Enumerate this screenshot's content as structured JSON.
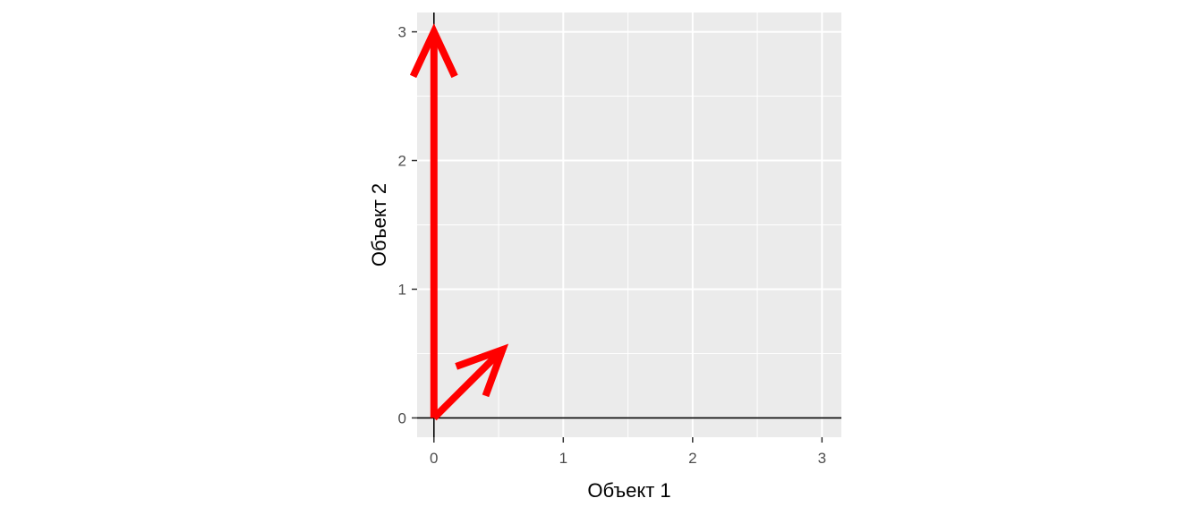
{
  "chart_data": {
    "type": "vector",
    "xlabel": "Объект 1",
    "ylabel": "Объект 2",
    "xlim": [
      -0.13,
      3.15
    ],
    "ylim": [
      -0.15,
      3.15
    ],
    "xticks": [
      0,
      1,
      2,
      3
    ],
    "yticks": [
      0,
      1,
      2,
      3
    ],
    "grid": true,
    "reference_lines": {
      "x": 0,
      "y": 0
    },
    "vectors": [
      {
        "from": [
          0,
          0
        ],
        "to": [
          0,
          3
        ]
      },
      {
        "from": [
          0,
          0
        ],
        "to": [
          0.53,
          0.53
        ]
      }
    ],
    "colors": {
      "vector": "#ff0000",
      "panel": "#ebebeb",
      "grid": "#ffffff",
      "axis_line": "#000000",
      "tick_text": "#4d4d4d"
    }
  }
}
